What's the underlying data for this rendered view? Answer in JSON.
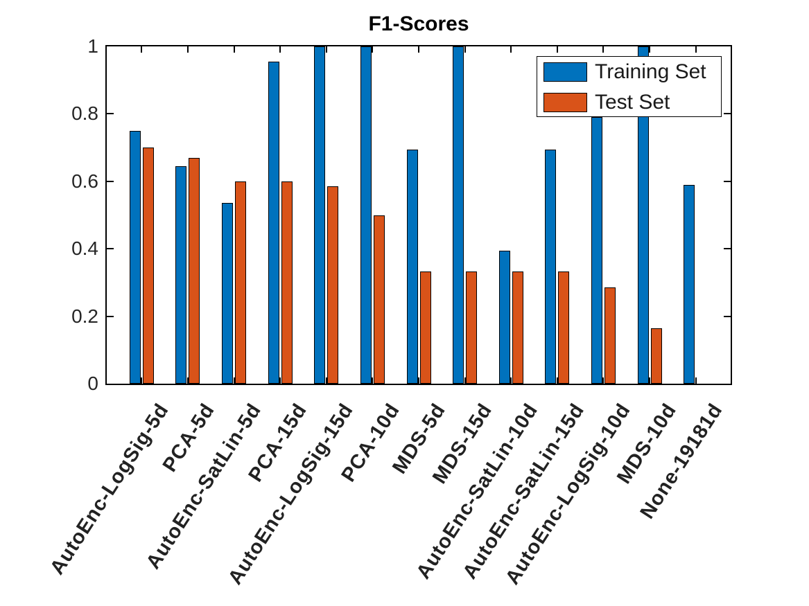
{
  "figure": {
    "background": "#FFFFFF",
    "axis_color": "#000000",
    "tick_label_color": "#262626",
    "title_color": "#000000"
  },
  "chart_data": {
    "type": "bar",
    "title": "F1-Scores",
    "xlabel": "",
    "ylabel": "",
    "categories": [
      "AutoEnc-LogSig-5d",
      "PCA-5d",
      "AutoEnc-SatLin-5d",
      "PCA-15d",
      "AutoEnc-LogSig-15d",
      "PCA-10d",
      "MDS-5d",
      "MDS-15d",
      "AutoEnc-SatLin-10d",
      "AutoEnc-SatLin-15d",
      "AutoEnc-LogSig-10d",
      "MDS-10d",
      "None-19181d"
    ],
    "series": [
      {
        "name": "Training Set",
        "color": "#0072BD",
        "values": [
          0.75,
          0.645,
          0.535,
          0.955,
          1.0,
          1.0,
          0.695,
          1.0,
          0.395,
          0.695,
          0.79,
          1.0,
          0.59
        ]
      },
      {
        "name": "Test Set",
        "color": "#D95319",
        "values": [
          0.7,
          0.67,
          0.6,
          0.6,
          0.585,
          0.5,
          0.333,
          0.333,
          0.333,
          0.333,
          0.285,
          0.165,
          0.0
        ]
      }
    ],
    "ylim": [
      0,
      1
    ],
    "yticks": [
      0,
      0.2,
      0.4,
      0.6,
      0.8,
      1
    ],
    "ytick_labels": [
      "0",
      "0.2",
      "0.4",
      "0.6",
      "0.8",
      "1"
    ],
    "grid": false,
    "legend_position": "top-right",
    "bar_edge_color": "#000000"
  }
}
